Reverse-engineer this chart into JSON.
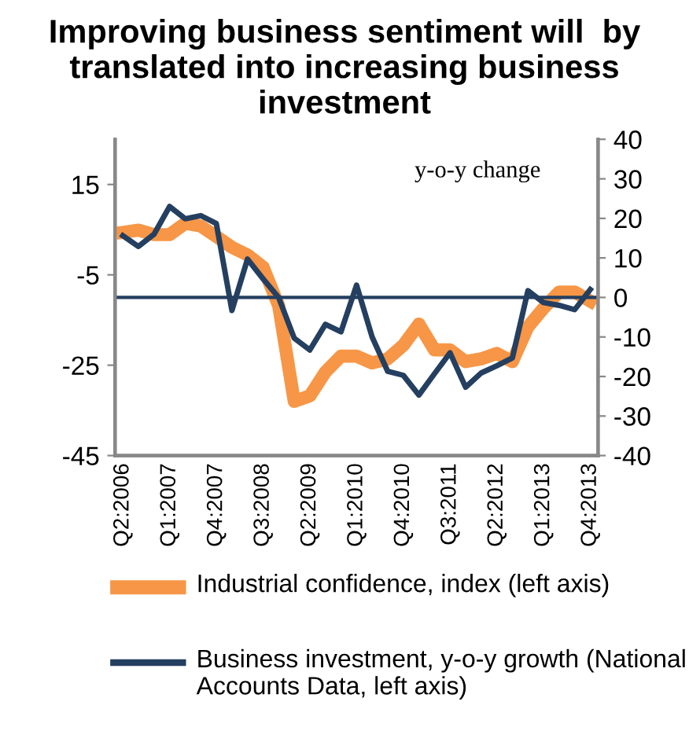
{
  "chart_data": {
    "type": "line",
    "title": "Improving business sentiment will  by translated into increasing business investment",
    "annotations": [
      "y-o-y change"
    ],
    "categories": [
      "Q2:2006",
      null,
      null,
      "Q1:2007",
      null,
      null,
      "Q4:2007",
      null,
      null,
      "Q3:2008",
      null,
      null,
      "Q2:2009",
      null,
      null,
      "Q1:2010",
      null,
      null,
      "Q4:2010",
      null,
      null,
      "Q3:2011",
      null,
      null,
      "Q2:2012",
      null,
      null,
      "Q1:2013",
      null,
      null,
      "Q4:2013"
    ],
    "series": [
      {
        "name": "Industrial confidence, index (left axis)",
        "color": "#f79646",
        "values": [
          4.4,
          4.9,
          3.9,
          3.9,
          6.4,
          5.8,
          3.5,
          1.1,
          -0.6,
          -3.3,
          -11.8,
          -33,
          -31.8,
          -26.5,
          -23,
          -23,
          -24.5,
          -23.6,
          -20.6,
          -15.9,
          -21.6,
          -21.6,
          -24.2,
          -23.6,
          -22.4,
          -24.2,
          -16.5,
          -12.4,
          -8.8,
          -8.8,
          -10.8
        ]
      },
      {
        "name": "Business investment, y-o-y growth (National Accounts Data, left axis)",
        "color": "#243f60",
        "axis": "y2",
        "values": [
          15.6,
          12.9,
          16,
          23,
          19.9,
          20.7,
          18.7,
          -3.3,
          9.7,
          4.7,
          0,
          -10.3,
          -13.3,
          -6.8,
          -8.7,
          3.1,
          -10,
          -18.7,
          -19.7,
          -24.7,
          -19.3,
          -14,
          -22.7,
          -19.1,
          -17.3,
          -15.3,
          1.7,
          -1.3,
          -2,
          -3.1,
          2
        ]
      }
    ],
    "ylim": [
      -45,
      25
    ],
    "yticks": [
      -45,
      -25,
      -5,
      15
    ],
    "y2lim": [
      -40,
      40
    ],
    "y2ticks": [
      -40,
      -30,
      -20,
      -10,
      0,
      10,
      20,
      30,
      40
    ],
    "ref_lines": [
      {
        "axis": "y2",
        "value": 0,
        "color": "#243f60"
      }
    ],
    "legend": "bottom",
    "grid": false,
    "marker": "none",
    "line_style": "solid"
  }
}
